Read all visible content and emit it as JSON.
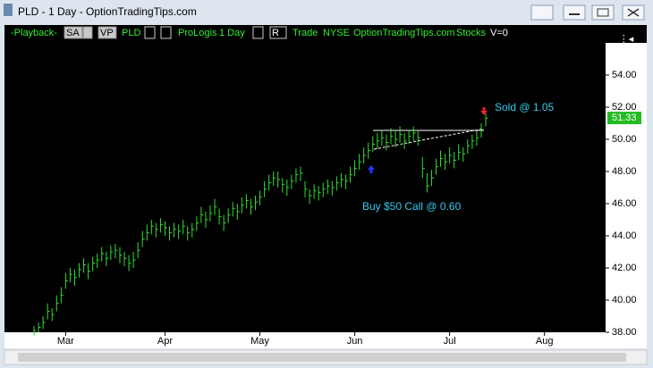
{
  "window": {
    "title": "PLD - 1 Day - OptionTradingTips.com"
  },
  "toolbar": {
    "playback": "-Playback-",
    "sa": "SA",
    "vp": "VP",
    "symbol": "PLD",
    "name": "ProLogis",
    "interval": "1 Day",
    "r": "R",
    "trade": "Trade",
    "exchange": "NYSE",
    "source": "OptionTradingTips.com",
    "kind": "Stocks",
    "volume": "V=0"
  },
  "chart_data": {
    "type": "ohlc",
    "color": "#33dd33",
    "annotations": {
      "sold": "Sold @ 1.05",
      "buy": "Buy $50 Call @ 0.60"
    },
    "last_price": 51.33,
    "last_price_label": "51.33",
    "categories": [
      null,
      null,
      null,
      null,
      null,
      null,
      null,
      "Mar",
      null,
      null,
      null,
      null,
      null,
      null,
      null,
      null,
      null,
      null,
      null,
      null,
      null,
      null,
      null,
      null,
      null,
      null,
      null,
      null,
      null,
      "Apr",
      null,
      null,
      null,
      null,
      null,
      null,
      null,
      null,
      null,
      null,
      null,
      null,
      null,
      null,
      null,
      null,
      null,
      null,
      null,
      null,
      "May",
      null,
      null,
      null,
      null,
      null,
      null,
      null,
      null,
      null,
      null,
      null,
      null,
      null,
      null,
      null,
      null,
      null,
      null,
      null,
      null,
      "Jun",
      null,
      null,
      null,
      null,
      null,
      null,
      null,
      null,
      null,
      null,
      null,
      null,
      null,
      null,
      null,
      null,
      null,
      null,
      null,
      null,
      "Jul",
      null,
      null,
      null,
      null,
      null,
      null,
      null,
      null,
      null,
      null,
      null,
      null,
      null,
      null,
      null,
      null,
      null,
      null,
      null,
      null,
      "Aug",
      null,
      null,
      null,
      null,
      null,
      null,
      null,
      null,
      null,
      null,
      null,
      null
    ],
    "close": [
      38.1,
      38.3,
      38.6,
      39.3,
      39.1,
      39.8,
      40.3,
      41.2,
      41.6,
      41.4,
      41.9,
      42.2,
      41.8,
      42.3,
      42.5,
      42.9,
      42.6,
      43.0,
      43.1,
      42.8,
      42.6,
      42.3,
      42.5,
      43.1,
      43.8,
      44.2,
      44.6,
      44.4,
      44.7,
      44.5,
      44.2,
      44.4,
      44.3,
      44.6,
      44.2,
      44.4,
      44.8,
      45.3,
      45.0,
      45.4,
      45.8,
      45.2,
      44.8,
      45.3,
      45.7,
      45.5,
      45.9,
      46.2,
      45.8,
      46.1,
      46.4,
      46.9,
      47.3,
      47.6,
      47.5,
      47.2,
      47.0,
      47.4,
      47.8,
      47.9,
      46.9,
      46.5,
      46.8,
      46.7,
      46.9,
      47.1,
      47.0,
      47.3,
      47.5,
      47.4,
      47.8,
      48.2,
      48.6,
      49.0,
      49.3,
      49.7,
      49.9,
      50.1,
      49.8,
      50.2,
      50.0,
      50.3,
      49.9,
      50.2,
      50.4,
      50.1,
      48.2,
      47.1,
      47.6,
      48.3,
      48.8,
      48.6,
      49.0,
      48.7,
      49.2,
      49.1,
      49.6,
      49.9,
      50.1,
      50.6,
      51.3,
      null,
      null,
      null,
      null,
      null,
      null,
      null,
      null,
      null,
      null,
      null,
      null,
      null,
      null,
      null,
      null,
      null,
      null,
      null,
      null,
      null,
      null,
      null,
      null,
      null
    ],
    "high": [
      38.4,
      38.6,
      39.0,
      39.8,
      39.5,
      40.3,
      40.8,
      41.7,
      42.0,
      41.9,
      42.3,
      42.6,
      42.3,
      42.7,
      42.9,
      43.3,
      43.0,
      43.4,
      43.5,
      43.3,
      43.0,
      42.8,
      43.0,
      43.6,
      44.3,
      44.7,
      45.0,
      44.8,
      45.1,
      44.9,
      44.6,
      44.8,
      44.7,
      45.0,
      44.6,
      44.8,
      45.2,
      45.8,
      45.5,
      45.9,
      46.3,
      45.7,
      45.3,
      45.7,
      46.1,
      46.0,
      46.4,
      46.6,
      46.3,
      46.5,
      46.8,
      47.4,
      47.8,
      48.0,
      48.0,
      47.6,
      47.5,
      47.8,
      48.2,
      48.3,
      47.4,
      46.9,
      47.2,
      47.1,
      47.3,
      47.5,
      47.4,
      47.7,
      47.9,
      47.8,
      48.3,
      48.7,
      49.1,
      49.5,
      49.8,
      50.2,
      50.4,
      50.6,
      50.3,
      50.7,
      50.5,
      50.8,
      50.4,
      50.6,
      50.8,
      50.5,
      48.9,
      47.9,
      48.1,
      48.8,
      49.3,
      49.1,
      49.5,
      49.2,
      49.7,
      49.5,
      50.0,
      50.3,
      50.5,
      51.0,
      51.6,
      null,
      null,
      null,
      null,
      null,
      null,
      null,
      null,
      null,
      null,
      null,
      null,
      null,
      null,
      null,
      null,
      null,
      null,
      null,
      null,
      null,
      null,
      null,
      null,
      null
    ],
    "low": [
      37.8,
      38.0,
      38.2,
      38.8,
      38.7,
      39.3,
      39.8,
      40.7,
      41.1,
      40.9,
      41.4,
      41.7,
      41.3,
      41.8,
      42.0,
      42.4,
      42.1,
      42.5,
      42.6,
      42.3,
      42.1,
      41.8,
      42.0,
      42.6,
      43.3,
      43.7,
      44.1,
      43.9,
      44.2,
      44.0,
      43.7,
      43.9,
      43.8,
      44.1,
      43.7,
      43.9,
      44.3,
      44.8,
      44.5,
      44.9,
      45.3,
      44.7,
      44.3,
      44.8,
      45.2,
      45.0,
      45.4,
      45.7,
      45.3,
      45.6,
      45.9,
      46.4,
      46.8,
      47.1,
      47.0,
      46.7,
      46.5,
      46.9,
      47.3,
      47.4,
      46.4,
      46.0,
      46.3,
      46.2,
      46.4,
      46.6,
      46.5,
      46.8,
      47.0,
      46.9,
      47.3,
      47.7,
      48.1,
      48.5,
      48.8,
      49.2,
      49.4,
      49.6,
      49.3,
      49.7,
      49.5,
      49.8,
      49.4,
      49.7,
      49.9,
      49.6,
      47.6,
      46.7,
      47.1,
      47.8,
      48.3,
      48.1,
      48.5,
      48.2,
      48.7,
      48.6,
      49.1,
      49.4,
      49.6,
      50.1,
      50.8,
      null,
      null,
      null,
      null,
      null,
      null,
      null,
      null,
      null,
      null,
      null,
      null,
      null,
      null,
      null,
      null,
      null,
      null,
      null,
      null,
      null,
      null,
      null,
      null,
      null
    ],
    "ylim": [
      37.9,
      55.9
    ],
    "yticks": [
      {
        "value": 38,
        "label": "38.00"
      },
      {
        "value": 40,
        "label": "40.00"
      },
      {
        "value": 42,
        "label": "42.00"
      },
      {
        "value": 44,
        "label": "44.00"
      },
      {
        "value": 46,
        "label": "46.00"
      },
      {
        "value": 48,
        "label": "48.00"
      },
      {
        "value": 50,
        "label": "50.00"
      },
      {
        "value": 52,
        "label": "52.00"
      },
      {
        "value": 54,
        "label": "54.00"
      }
    ],
    "grid": false
  }
}
